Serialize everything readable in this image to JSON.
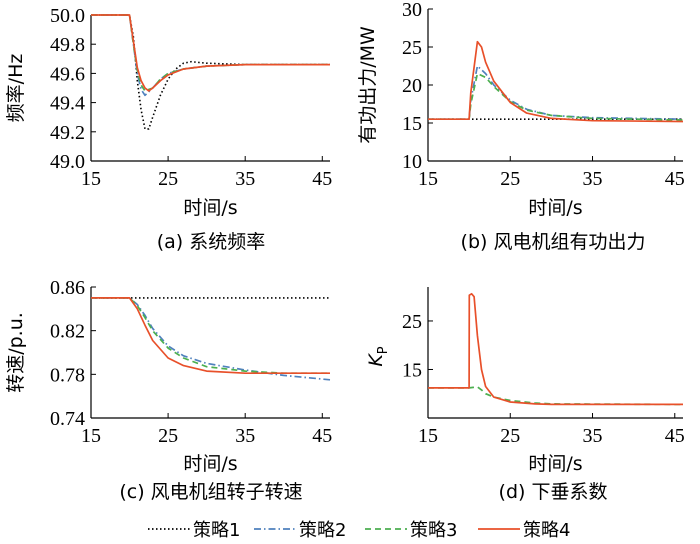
{
  "colors": {
    "策略1": "#000000",
    "策略2": "#4f81bd",
    "策略3": "#4caf50",
    "策略4": "#e8502a"
  },
  "legend": [
    {
      "name": "策略1",
      "style": "dotted"
    },
    {
      "name": "策略2",
      "style": "dashdot"
    },
    {
      "name": "策略3",
      "style": "dashed"
    },
    {
      "name": "策略4",
      "style": "solid"
    }
  ],
  "chart_data": [
    {
      "type": "line",
      "caption": "(a)  系统频率",
      "xlabel": "时间/s",
      "ylabel": "频率/Hz",
      "xlim": [
        15,
        46
      ],
      "ylim": [
        49.0,
        50.0
      ],
      "xticks": [
        "15",
        "25",
        "35",
        "45"
      ],
      "yticks": [
        "49.0",
        "49.2",
        "49.4",
        "49.6",
        "49.8",
        "50.0"
      ],
      "series": [
        {
          "name": "策略1",
          "x": [
            15,
            20,
            20.5,
            21,
            21.5,
            22,
            22.5,
            23,
            24,
            25,
            26,
            27,
            28,
            30,
            35,
            46
          ],
          "y": [
            50.0,
            50.0,
            49.85,
            49.55,
            49.35,
            49.22,
            49.22,
            49.3,
            49.45,
            49.56,
            49.63,
            49.67,
            49.68,
            49.67,
            49.66,
            49.66
          ]
        },
        {
          "name": "策略2",
          "x": [
            15,
            20,
            20.5,
            21,
            21.5,
            22,
            23,
            24,
            25,
            27,
            30,
            35,
            46
          ],
          "y": [
            50.0,
            50.0,
            49.8,
            49.6,
            49.49,
            49.45,
            49.5,
            49.56,
            49.6,
            49.63,
            49.65,
            49.66,
            49.66
          ]
        },
        {
          "name": "策略3",
          "x": [
            15,
            20,
            20.5,
            21,
            21.5,
            22,
            23,
            24,
            25,
            27,
            30,
            35,
            46
          ],
          "y": [
            50.0,
            50.0,
            49.8,
            49.62,
            49.52,
            49.48,
            49.5,
            49.56,
            49.6,
            49.63,
            49.65,
            49.66,
            49.66
          ]
        },
        {
          "name": "策略4",
          "x": [
            15,
            20,
            20.5,
            21,
            21.5,
            22,
            22.5,
            23,
            24,
            25,
            27,
            30,
            35,
            46
          ],
          "y": [
            50.0,
            50.0,
            49.82,
            49.64,
            49.55,
            49.5,
            49.48,
            49.5,
            49.55,
            49.59,
            49.63,
            49.65,
            49.66,
            49.66
          ]
        }
      ]
    },
    {
      "type": "line",
      "caption": "(b)  风电机组有功出力",
      "xlabel": "时间/s",
      "ylabel": "有功出力/MW",
      "xlim": [
        15,
        46
      ],
      "ylim": [
        10,
        30
      ],
      "xticks": [
        "15",
        "25",
        "35",
        "45"
      ],
      "yticks": [
        "10",
        "15",
        "20",
        "25",
        "30"
      ],
      "series": [
        {
          "name": "策略1",
          "x": [
            15,
            46
          ],
          "y": [
            15.5,
            15.5
          ]
        },
        {
          "name": "策略2",
          "x": [
            15,
            20,
            20.2,
            21,
            22,
            23,
            25,
            27,
            30,
            35,
            46
          ],
          "y": [
            15.5,
            15.5,
            18.0,
            22.5,
            21.5,
            20.0,
            18.0,
            16.8,
            16.0,
            15.7,
            15.5
          ]
        },
        {
          "name": "策略3",
          "x": [
            15,
            20,
            20.2,
            21,
            22,
            23,
            25,
            27,
            30,
            35,
            46
          ],
          "y": [
            15.5,
            15.5,
            17.5,
            21.5,
            21.0,
            19.8,
            17.8,
            16.7,
            16.0,
            15.6,
            15.4
          ]
        },
        {
          "name": "策略4",
          "x": [
            15,
            20,
            20.2,
            21,
            21.5,
            22,
            23,
            25,
            27,
            30,
            35,
            46
          ],
          "y": [
            15.5,
            15.5,
            19.0,
            25.7,
            25.0,
            23.0,
            20.5,
            17.7,
            16.3,
            15.6,
            15.3,
            15.2
          ]
        }
      ]
    },
    {
      "type": "line",
      "caption": "(c)  风电机组转子转速",
      "xlabel": "时间/s",
      "ylabel": "转速/p.u.",
      "xlim": [
        15,
        46
      ],
      "ylim": [
        0.74,
        0.86
      ],
      "xticks": [
        "15",
        "25",
        "35",
        "45"
      ],
      "yticks": [
        "0.74",
        "0.78",
        "0.82",
        "0.86"
      ],
      "series": [
        {
          "name": "策略1",
          "x": [
            15,
            46
          ],
          "y": [
            0.85,
            0.85
          ]
        },
        {
          "name": "策略2",
          "x": [
            15,
            20,
            21,
            22,
            23,
            25,
            27,
            30,
            35,
            40,
            46
          ],
          "y": [
            0.85,
            0.85,
            0.844,
            0.834,
            0.822,
            0.806,
            0.797,
            0.79,
            0.784,
            0.779,
            0.775
          ]
        },
        {
          "name": "策略3",
          "x": [
            15,
            20,
            21,
            22,
            23,
            25,
            27,
            30,
            35,
            40,
            46
          ],
          "y": [
            0.85,
            0.85,
            0.843,
            0.832,
            0.82,
            0.804,
            0.795,
            0.787,
            0.783,
            0.781,
            0.781
          ]
        },
        {
          "name": "策略4",
          "x": [
            15,
            20,
            21,
            22,
            23,
            25,
            27,
            30,
            35,
            40,
            46
          ],
          "y": [
            0.85,
            0.85,
            0.84,
            0.825,
            0.811,
            0.795,
            0.788,
            0.783,
            0.781,
            0.781,
            0.781
          ]
        }
      ]
    },
    {
      "type": "line",
      "caption": "(d)  下垂系数",
      "xlabel": "时间/s",
      "ylabel": "K",
      "ylabel_sub": "P",
      "xlim": [
        15,
        46
      ],
      "ylim": [
        5,
        32
      ],
      "xticks": [
        "15",
        "25",
        "35",
        "45"
      ],
      "yticks": [
        "15",
        "25"
      ],
      "series": [
        {
          "name": "策略3",
          "x": [
            15,
            20,
            20.5,
            21,
            21.5,
            22,
            23,
            25,
            28,
            30,
            46
          ],
          "y": [
            11.2,
            11.2,
            11.3,
            11.4,
            10.8,
            10.0,
            9.3,
            8.6,
            8.1,
            7.9,
            7.8
          ]
        },
        {
          "name": "策略4",
          "x": [
            15,
            20,
            20.02,
            20.3,
            20.6,
            21,
            21.5,
            22,
            23,
            25,
            28,
            30,
            46
          ],
          "y": [
            11.2,
            11.2,
            30.3,
            30.6,
            30.0,
            22.0,
            15.0,
            11.5,
            9.3,
            8.3,
            7.9,
            7.8,
            7.8
          ]
        }
      ]
    }
  ]
}
